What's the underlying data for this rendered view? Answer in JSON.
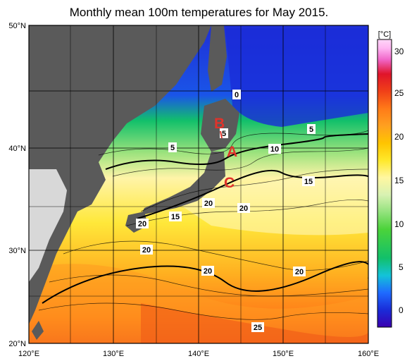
{
  "title": "Monthly mean 100m temperatures for May 2015.",
  "lat_labels": [
    "50°N",
    "40°N",
    "30°N",
    "20°N"
  ],
  "lon_labels": [
    "120°E",
    "130°E",
    "140°E",
    "150°E",
    "160°E"
  ],
  "colorbar": {
    "unit": "[°C]",
    "ticks": [
      "30",
      "25",
      "20",
      "15",
      "10",
      "5",
      "0"
    ],
    "colors": [
      "#3a00b0",
      "#1a2cd8",
      "#1f6bff",
      "#13c3d8",
      "#12c06a",
      "#4bd33a",
      "#93e27d",
      "#d8f2b2",
      "#fff7a0",
      "#ffe82a",
      "#ffc400",
      "#ffa020",
      "#ff7a18",
      "#f04018",
      "#e0142a",
      "#f066c8",
      "#ffb6f2",
      "#ffd6f8"
    ]
  },
  "markers": [
    "A",
    "B",
    "C"
  ],
  "contour_labels": [
    "0",
    "5",
    "5",
    "5",
    "10",
    "15",
    "15",
    "20",
    "20",
    "20",
    "20",
    "20",
    "20",
    "25"
  ],
  "colors": {
    "land": "#5a5a5a",
    "land_outside": "#d8d8d8",
    "marker": "#e0332b",
    "grid": "#000000"
  }
}
